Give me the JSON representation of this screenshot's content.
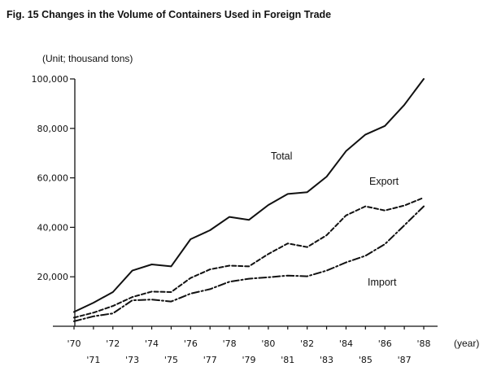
{
  "chart_data": {
    "type": "line",
    "title": "Fig. 15 Changes in the Volume of Containers Used in Foreign Trade",
    "unit_label": "(Unit; thousand tons)",
    "xlabel": "(year)",
    "x": [
      1970,
      1971,
      1972,
      1973,
      1974,
      1975,
      1976,
      1977,
      1978,
      1979,
      1980,
      1981,
      1982,
      1983,
      1984,
      1985,
      1986,
      1987,
      1988
    ],
    "x_tick_labels": [
      "'70",
      "'71",
      "'72",
      "'73",
      "'74",
      "'75",
      "'76",
      "'77",
      "'78",
      "'79",
      "'80",
      "'81",
      "'82",
      "'83",
      "'84",
      "'85",
      "'86",
      "'87",
      "'88"
    ],
    "ylim": [
      0,
      100000
    ],
    "y_ticks": [
      20000,
      40000,
      60000,
      80000,
      100000
    ],
    "y_tick_labels": [
      "20,000",
      "40,000",
      "60,000",
      "80,000",
      "100,000"
    ],
    "grid": false,
    "series": [
      {
        "name": "Total",
        "style": "solid",
        "values": [
          5800,
          9500,
          13800,
          22500,
          25000,
          24200,
          35200,
          38800,
          44200,
          43000,
          49000,
          53500,
          54200,
          60500,
          70800,
          77500,
          81000,
          89500,
          100000
        ]
      },
      {
        "name": "Export",
        "style": "dashed",
        "values": [
          3500,
          5500,
          8200,
          11800,
          14000,
          13800,
          19500,
          23000,
          24500,
          24200,
          29200,
          33500,
          32000,
          36800,
          44800,
          48500,
          46800,
          48800,
          52000
        ]
      },
      {
        "name": "Import",
        "style": "dash-dot",
        "values": [
          2000,
          4000,
          5200,
          10500,
          10800,
          10000,
          13200,
          15000,
          18000,
          19200,
          19800,
          20500,
          20200,
          22500,
          25800,
          28500,
          33200,
          40800,
          48500
        ]
      }
    ]
  }
}
